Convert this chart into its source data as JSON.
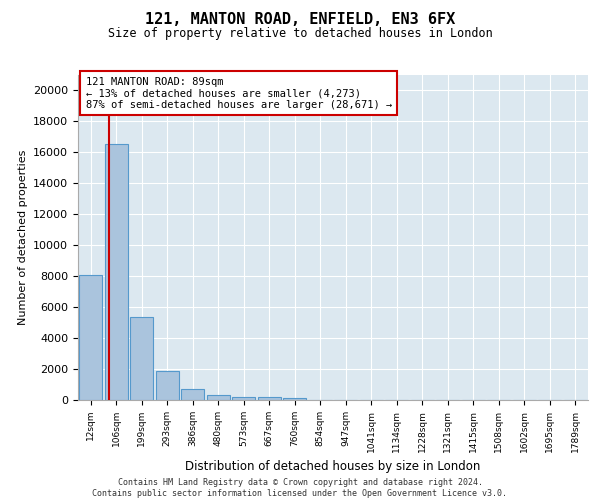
{
  "title": "121, MANTON ROAD, ENFIELD, EN3 6FX",
  "subtitle": "Size of property relative to detached houses in London",
  "xlabel": "Distribution of detached houses by size in London",
  "ylabel": "Number of detached properties",
  "bar_values": [
    8050,
    16550,
    5350,
    1850,
    700,
    320,
    220,
    170,
    130,
    0,
    0,
    0,
    0,
    0,
    0,
    0,
    0,
    0,
    0,
    0
  ],
  "bar_color": "#aac4dd",
  "bar_edge_color": "#5599cc",
  "x_labels": [
    "12sqm",
    "106sqm",
    "199sqm",
    "293sqm",
    "386sqm",
    "480sqm",
    "573sqm",
    "667sqm",
    "760sqm",
    "854sqm",
    "947sqm",
    "1041sqm",
    "1134sqm",
    "1228sqm",
    "1321sqm",
    "1415sqm",
    "1508sqm",
    "1602sqm",
    "1695sqm",
    "1789sqm"
  ],
  "ylim": [
    0,
    21000
  ],
  "yticks": [
    0,
    2000,
    4000,
    6000,
    8000,
    10000,
    12000,
    14000,
    16000,
    18000,
    20000
  ],
  "property_line_x": 0.72,
  "annotation_text": "121 MANTON ROAD: 89sqm\n← 13% of detached houses are smaller (4,273)\n87% of semi-detached houses are larger (28,671) →",
  "annotation_box_color": "#cc0000",
  "background_color": "#dce8f0",
  "footer_line1": "Contains HM Land Registry data © Crown copyright and database right 2024.",
  "footer_line2": "Contains public sector information licensed under the Open Government Licence v3.0."
}
